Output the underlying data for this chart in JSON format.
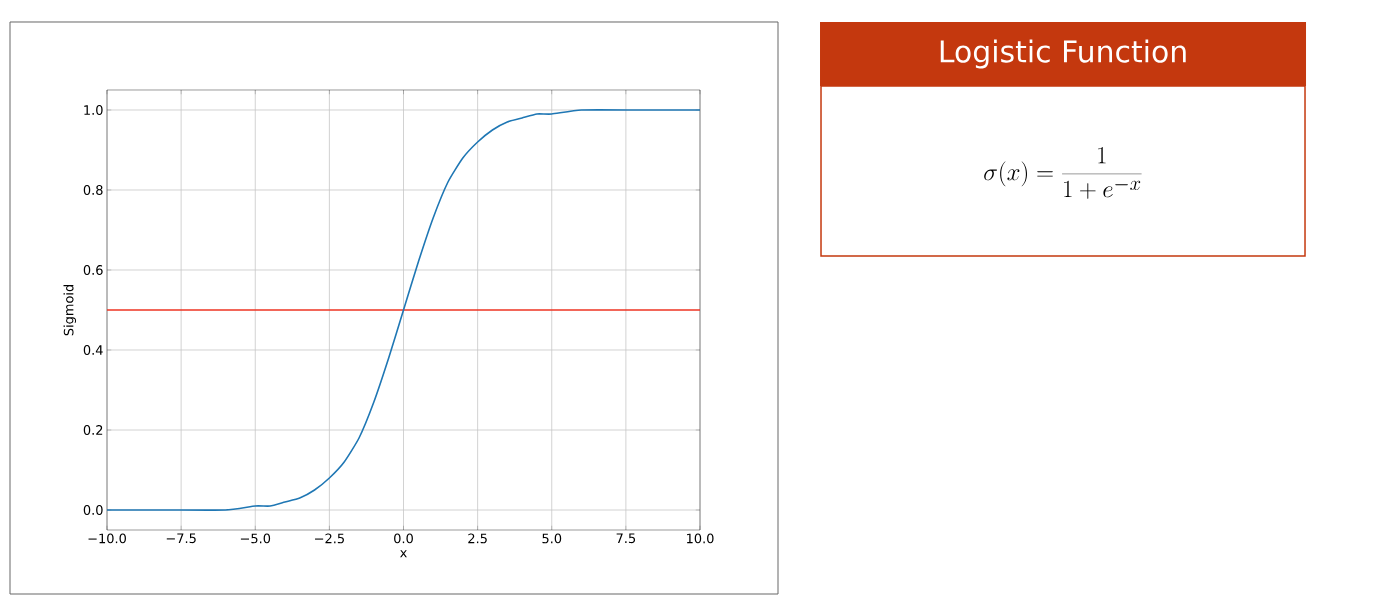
{
  "chart_data": [
    {
      "type": "line",
      "xlabel": "x",
      "ylabel": "Sigmoid",
      "x": [
        -10,
        -8,
        -6,
        -5,
        -4.5,
        -4,
        -3.5,
        -3,
        -2.5,
        -2,
        -1.5,
        -1,
        -0.5,
        0,
        0.5,
        1,
        1.5,
        2,
        2.5,
        3,
        3.5,
        4,
        4.5,
        5,
        6,
        8,
        10
      ],
      "series": [
        {
          "color": "#1f77b4",
          "values": [
            0.0,
            0.0,
            0.0,
            0.01,
            0.01,
            0.02,
            0.03,
            0.05,
            0.08,
            0.12,
            0.18,
            0.27,
            0.38,
            0.5,
            0.62,
            0.73,
            0.82,
            0.88,
            0.92,
            0.95,
            0.97,
            0.98,
            0.99,
            0.99,
            1.0,
            1.0,
            1.0
          ]
        }
      ],
      "xlim": [
        -10,
        10
      ],
      "ylim": [
        -0.05,
        1.05
      ],
      "xticks": [
        {
          "value": -10,
          "label": "−10.0"
        },
        {
          "value": -7.5,
          "label": "−7.5"
        },
        {
          "value": -5,
          "label": "−5.0"
        },
        {
          "value": -2.5,
          "label": "−2.5"
        },
        {
          "value": 0,
          "label": "0.0"
        },
        {
          "value": 2.5,
          "label": "2.5"
        },
        {
          "value": 5,
          "label": "5.0"
        },
        {
          "value": 7.5,
          "label": "7.5"
        },
        {
          "value": 10,
          "label": "10.0"
        }
      ],
      "yticks": [
        {
          "value": 0,
          "label": "0.0"
        },
        {
          "value": 0.2,
          "label": "0.2"
        },
        {
          "value": 0.4,
          "label": "0.4"
        },
        {
          "value": 0.6,
          "label": "0.6"
        },
        {
          "value": 0.8,
          "label": "0.8"
        },
        {
          "value": 1.0,
          "label": "1.0"
        }
      ],
      "ref_lines": [
        {
          "axis": "y",
          "value": 0.5,
          "color": "#ee3322"
        }
      ],
      "grid": true
    },
    {
      "type": "other",
      "title": "Logistic Function",
      "annotations": [
        "\\sigma(x) = \\frac{1}{1+e^{-x}}"
      ]
    }
  ]
}
